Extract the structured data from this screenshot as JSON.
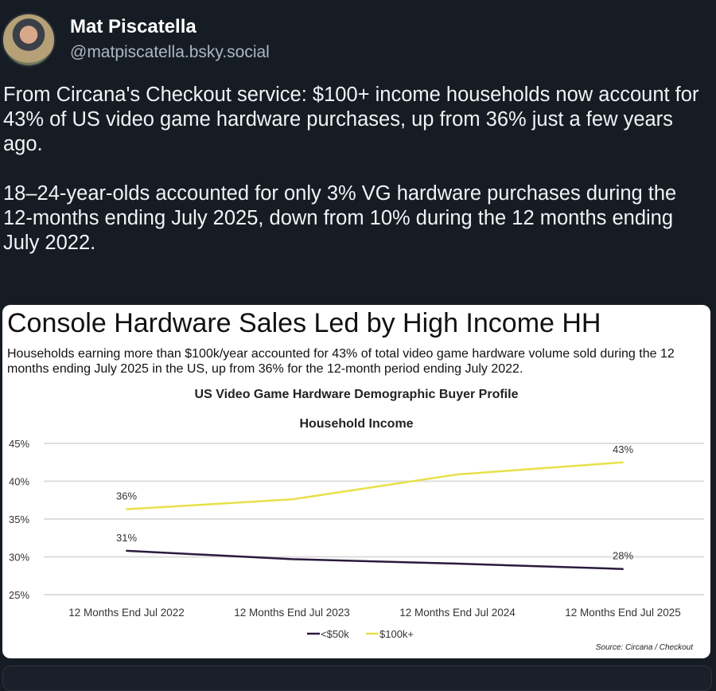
{
  "post": {
    "author_name": "Mat Piscatella",
    "handle": "@matpiscatella.bsky.social",
    "paragraphs": [
      "From Circana's Checkout service: $100+ income households now account for 43% of US video game hardware purchases, up from 36% just a few years ago.",
      "18–24-year-olds accounted for only 3% VG hardware purchases during the 12-months ending July 2025, down from 10% during the 12 months ending July 2022."
    ]
  },
  "card": {
    "title": "Console Hardware Sales Led by High Income HH",
    "subtitle": "Households earning more than $100k/year accounted for 43% of total video game hardware volume sold during the 12 months ending July 2025 in the US, up from 36% for the 12-month period ending July 2022.",
    "source": "Source: Circana / Checkout"
  },
  "chart_data": {
    "type": "line",
    "title": "US Video Game Hardware Demographic Buyer Profile",
    "subtitle": "Household Income",
    "categories": [
      "12 Months End Jul 2022",
      "12 Months End Jul 2023",
      "12 Months End Jul 2024",
      "12 Months End Jul 2025"
    ],
    "ylim": [
      25,
      45
    ],
    "yticks": [
      45,
      40,
      35,
      30,
      25
    ],
    "ytick_labels": [
      "45%",
      "40%",
      "35%",
      "30%",
      "25%"
    ],
    "grid": true,
    "legend": "bottom",
    "series": [
      {
        "name": "<$50k",
        "color": "#2a1a3e",
        "values": [
          30.8,
          29.7,
          29.1,
          28.4
        ],
        "labels": [
          "31%",
          null,
          null,
          "28%"
        ]
      },
      {
        "name": "$100k+",
        "color": "#e8e04a",
        "values": [
          36.3,
          37.6,
          40.9,
          42.5
        ],
        "labels": [
          "36%",
          null,
          null,
          "43%"
        ]
      }
    ]
  }
}
